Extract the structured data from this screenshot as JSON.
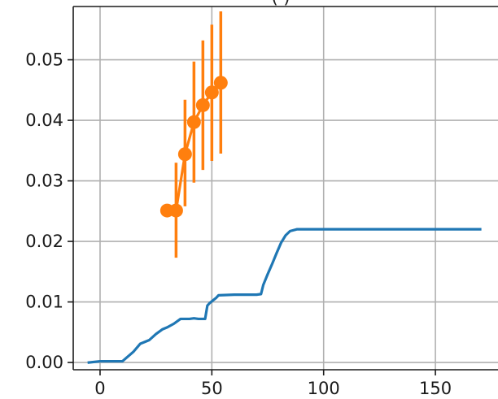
{
  "chart_data": {
    "type": "line",
    "title": "",
    "title_visible_fragment": "(         )",
    "xlabel": "",
    "ylabel": "",
    "xlim": [
      -12,
      178
    ],
    "ylim": [
      -0.0012,
      0.0588
    ],
    "grid": true,
    "x_ticks": [
      0,
      50,
      100,
      150
    ],
    "y_ticks": [
      0.0,
      0.01,
      0.02,
      0.03,
      0.04,
      0.05
    ],
    "x_tick_labels": [
      "0",
      "50",
      "100",
      "150"
    ],
    "y_tick_labels": [
      "0.00",
      "0.01",
      "0.02",
      "0.03",
      "0.04",
      "0.05"
    ],
    "series": [
      {
        "color": "#1f77b4",
        "style": "line",
        "x": [
          -5,
          0,
          10,
          15,
          18,
          20,
          22,
          25,
          28,
          30,
          33,
          36,
          38,
          40,
          42,
          44,
          47,
          48,
          49,
          52,
          53,
          60,
          65,
          70,
          72,
          73,
          75,
          77,
          79,
          81,
          83,
          85,
          88,
          100,
          120,
          150,
          170
        ],
        "y": [
          0.0,
          0.0002,
          0.0002,
          0.0018,
          0.0031,
          0.0034,
          0.0037,
          0.0047,
          0.0055,
          0.0058,
          0.0064,
          0.0072,
          0.0072,
          0.0072,
          0.0073,
          0.0072,
          0.0072,
          0.0094,
          0.0098,
          0.0107,
          0.0111,
          0.0112,
          0.0112,
          0.0112,
          0.0113,
          0.0128,
          0.0146,
          0.0163,
          0.0181,
          0.0198,
          0.021,
          0.0217,
          0.022,
          0.022,
          0.022,
          0.022,
          0.022
        ]
      },
      {
        "color": "#ff7f0e",
        "style": "line-markers-errorbars",
        "x": [
          30,
          34,
          38,
          42,
          46,
          50,
          54
        ],
        "y": [
          0.0251,
          0.0251,
          0.0344,
          0.0397,
          0.0425,
          0.0446,
          0.0462
        ],
        "err_low": [
          0.0251,
          0.0173,
          0.0258,
          0.0297,
          0.0318,
          0.0333,
          0.0345
        ],
        "err_high": [
          0.0251,
          0.033,
          0.0434,
          0.0497,
          0.0532,
          0.0558,
          0.058
        ]
      }
    ]
  }
}
